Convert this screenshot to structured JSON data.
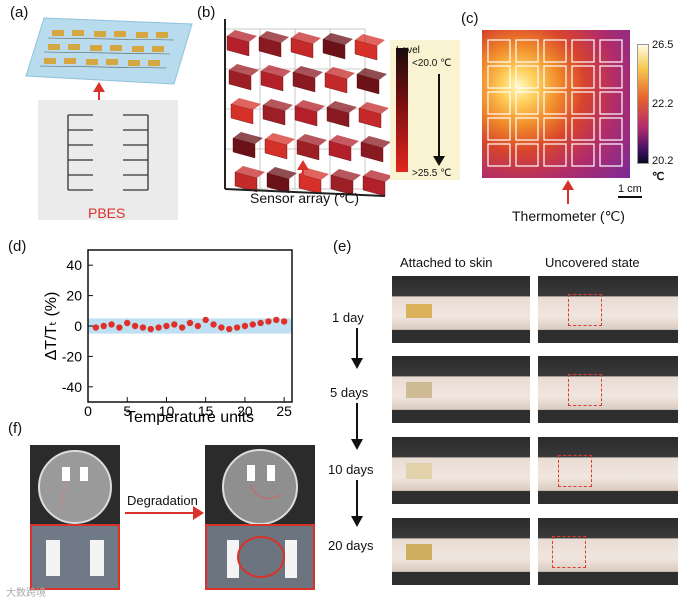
{
  "panels": {
    "a": {
      "label": "(a)",
      "caption": "PBES"
    },
    "b": {
      "label": "(b)",
      "caption": "Sensor array (℃)",
      "legend_title": "Level",
      "legend_top": "<20.0 ℃",
      "legend_bottom": ">25.5 ℃"
    },
    "c": {
      "label": "(c)",
      "caption": "Thermometer (℃)",
      "scale_max": "26.5",
      "scale_mid": "22.2",
      "scale_min": "20.2",
      "scale_unit": "℃",
      "scalebar": "1 cm"
    },
    "d": {
      "label": "(d)"
    },
    "e": {
      "label": "(e)",
      "col1": "Attached to skin",
      "col2": "Uncovered state",
      "days": [
        "1 day",
        "5 days",
        "10 days",
        "20 days"
      ]
    },
    "f": {
      "label": "(f)",
      "arrow_text": "Degradation"
    }
  },
  "chart_data": {
    "type": "scatter",
    "xlabel": "Temperature units",
    "ylabel": "ΔT/Tₜ (%)",
    "xlim": [
      0,
      26
    ],
    "ylim": [
      -50,
      50
    ],
    "xticks": [
      0,
      5,
      10,
      15,
      20,
      25
    ],
    "yticks": [
      40,
      20,
      0,
      -20,
      -40
    ],
    "band": [
      -5,
      5
    ],
    "x": [
      1,
      2,
      3,
      4,
      5,
      6,
      7,
      8,
      9,
      10,
      11,
      12,
      13,
      14,
      15,
      16,
      17,
      18,
      19,
      20,
      21,
      22,
      23,
      24,
      25
    ],
    "y": [
      -1,
      0,
      1,
      -1,
      2,
      0,
      -1,
      -2,
      -1,
      0,
      1,
      -1,
      2,
      0,
      4,
      1,
      -1,
      -2,
      -1,
      0,
      1,
      2,
      3,
      4,
      3
    ]
  },
  "colors": {
    "accent_red": "#d9322b",
    "band": "#bfe0f2",
    "point": "#e0302a"
  },
  "watermark": "大数跨境"
}
